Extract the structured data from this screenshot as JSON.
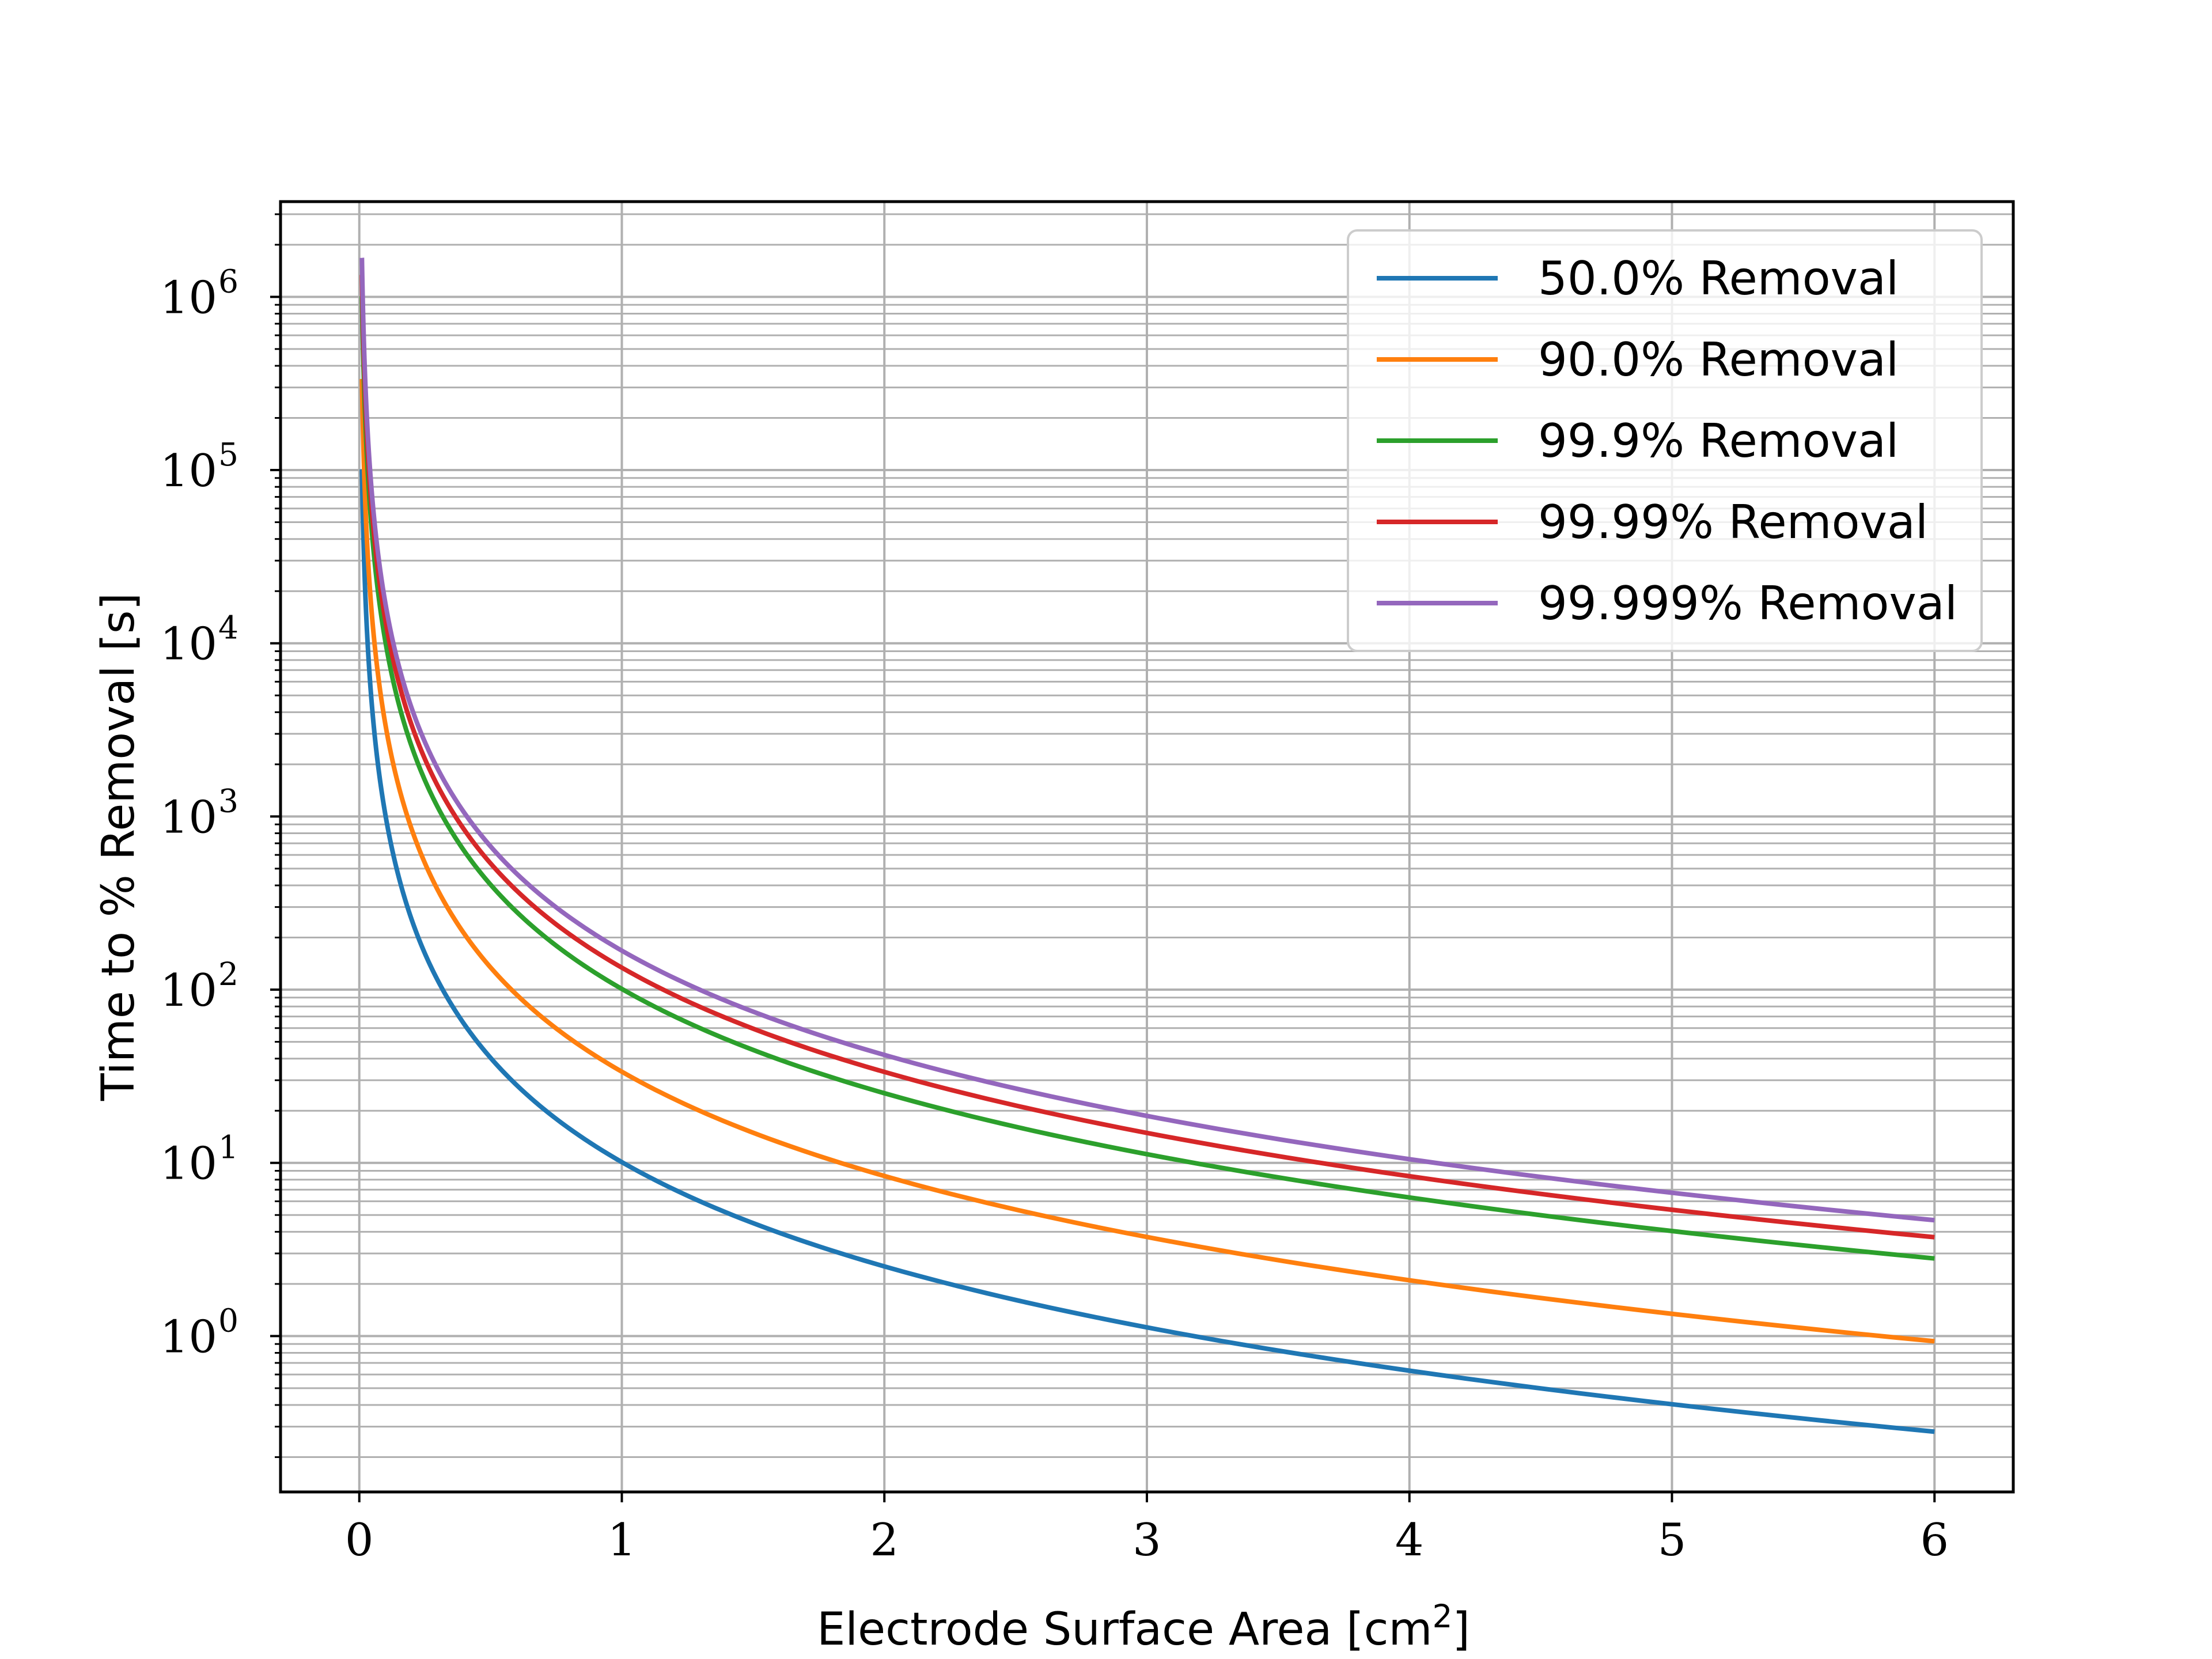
{
  "chart_data": {
    "type": "line",
    "xlabel": "Electrode Surface Area    [cm",
    "xlabel_sup": "2",
    "xlabel_end": "]",
    "ylabel": "Time to %  Removal    [s]",
    "xlim": [
      -0.3,
      6.3
    ],
    "ylim_log10": [
      -0.9,
      6.55
    ],
    "yscale": "log",
    "grid": true,
    "legend_position": "upper right",
    "x_ticks": [
      "0",
      "1",
      "2",
      "3",
      "4",
      "5",
      "6"
    ],
    "y_ticks": [
      {
        "base": "10",
        "exp": "0"
      },
      {
        "base": "10",
        "exp": "1"
      },
      {
        "base": "10",
        "exp": "2"
      },
      {
        "base": "10",
        "exp": "3"
      },
      {
        "base": "10",
        "exp": "4"
      },
      {
        "base": "10",
        "exp": "5"
      },
      {
        "base": "10",
        "exp": "6"
      }
    ],
    "model": "time = k / area^2",
    "x_range": [
      0.01,
      6.0
    ],
    "series": [
      {
        "name": "50.0% Removal",
        "color": "#1f77b4",
        "k": 10.1,
        "values_at": {
          "0.01": 101000,
          "1": 10.1,
          "2": 2.52,
          "3": 1.12,
          "4": 0.63,
          "5": 0.4,
          "6": 0.28
        }
      },
      {
        "name": "90.0% Removal",
        "color": "#ff7f0e",
        "k": 33.6,
        "values_at": {
          "0.01": 336000,
          "1": 33.6,
          "2": 8.4,
          "3": 3.73,
          "4": 2.1,
          "5": 1.34,
          "6": 0.93
        }
      },
      {
        "name": "99.9% Removal",
        "color": "#2ca02c",
        "k": 101,
        "values_at": {
          "0.01": 1010000,
          "1": 101,
          "2": 25.2,
          "3": 11.2,
          "4": 6.3,
          "5": 4.0,
          "6": 2.8
        }
      },
      {
        "name": "99.99% Removal",
        "color": "#d62728",
        "k": 134,
        "values_at": {
          "0.01": 1340000,
          "1": 134,
          "2": 33.5,
          "3": 14.9,
          "4": 8.4,
          "5": 5.4,
          "6": 3.7
        }
      },
      {
        "name": "99.999% Removal",
        "color": "#9467bd",
        "k": 168,
        "values_at": {
          "0.01": 1680000,
          "1": 168,
          "2": 42,
          "3": 18.7,
          "4": 10.5,
          "5": 6.7,
          "6": 4.7
        }
      }
    ]
  }
}
